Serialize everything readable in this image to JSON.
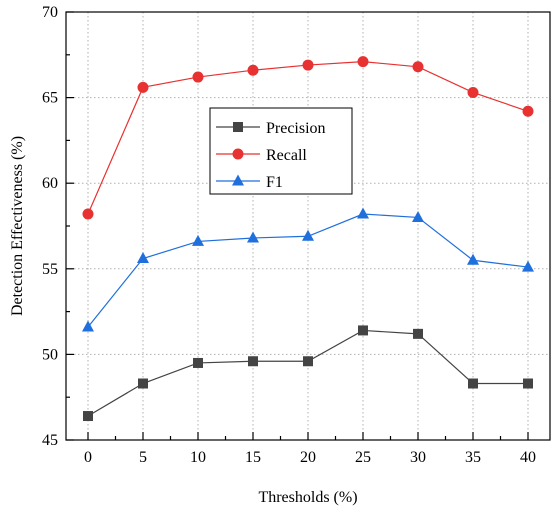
{
  "chart_data": {
    "type": "line",
    "title": "",
    "xlabel": "Thresholds (%)",
    "ylabel": "Detection Effectiveness (%)",
    "x": [
      0,
      5,
      10,
      15,
      20,
      25,
      30,
      35,
      40
    ],
    "xlim": [
      -2,
      42
    ],
    "ylim": [
      45,
      70
    ],
    "xticks": [
      "0",
      "5",
      "10",
      "15",
      "20",
      "25",
      "30",
      "35",
      "40"
    ],
    "yticks": [
      "45",
      "50",
      "55",
      "60",
      "65",
      "70"
    ],
    "grid": true,
    "legend_position": "center",
    "series": [
      {
        "name": "Precision",
        "color": "#444444",
        "marker": "square",
        "values": [
          46.4,
          48.3,
          49.5,
          49.6,
          49.6,
          51.4,
          51.2,
          48.3,
          48.3
        ]
      },
      {
        "name": "Recall",
        "color": "#e83131",
        "marker": "circle",
        "values": [
          58.2,
          65.6,
          66.2,
          66.6,
          66.9,
          67.1,
          66.8,
          65.3,
          64.2
        ]
      },
      {
        "name": "F1",
        "color": "#1f6fdc",
        "marker": "triangle",
        "values": [
          51.6,
          55.6,
          56.6,
          56.8,
          56.9,
          58.2,
          58.0,
          55.5,
          55.1
        ]
      }
    ]
  }
}
